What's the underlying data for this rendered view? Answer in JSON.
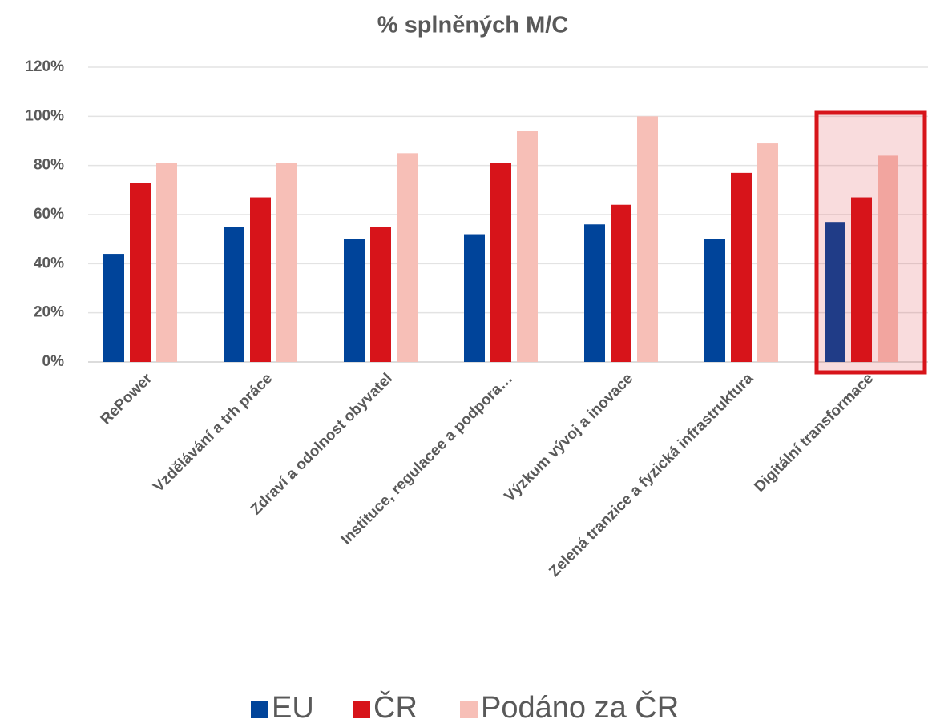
{
  "chart_data": {
    "type": "bar",
    "title": "% splněných M/C",
    "categories": [
      "RePower",
      "Vzdělávání a trh práce",
      "Zdraví a odolnost obyvatel",
      "Instituce, regulacee a podpora…",
      "Výzkum vývoj a inovace",
      "Zelená tranzice a fyzická infrastruktura",
      "Digitální transformace"
    ],
    "series": [
      {
        "name": "EU",
        "color": "#00449a",
        "values": [
          44,
          55,
          50,
          52,
          56,
          50,
          57
        ]
      },
      {
        "name": "ČR",
        "color": "#d7141a",
        "values": [
          73,
          67,
          55,
          81,
          64,
          77,
          67
        ]
      },
      {
        "name": "Podáno za ČR",
        "color": "#f7bfb7",
        "values": [
          81,
          81,
          85,
          94,
          100,
          89,
          84
        ]
      }
    ],
    "ylim": [
      0,
      120
    ],
    "yticks": [
      {
        "value": 0,
        "label": "0%"
      },
      {
        "value": 20,
        "label": "20%"
      },
      {
        "value": 40,
        "label": "40%"
      },
      {
        "value": 60,
        "label": "60%"
      },
      {
        "value": 80,
        "label": "80%"
      },
      {
        "value": 100,
        "label": "100%"
      },
      {
        "value": 120,
        "label": "120%"
      }
    ],
    "grid": true,
    "legend": "bottom"
  }
}
